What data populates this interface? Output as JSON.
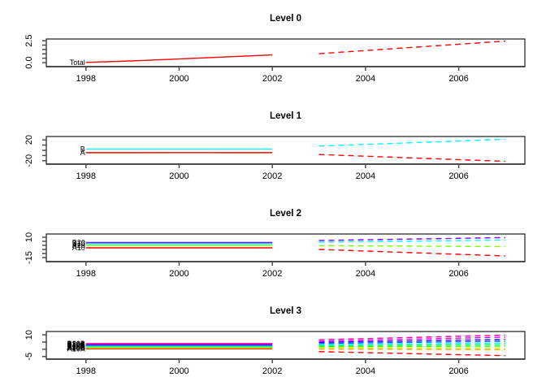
{
  "figure": {
    "background": "#ffffff",
    "text_color": "#000000",
    "box_color": "#1a1a1a",
    "axis_color": "#4d4d4d",
    "description": "Hierarchical time series forecast plot with four stacked panels"
  },
  "chart_data": [
    {
      "type": "line",
      "title": "Level 0",
      "xlim": [
        1997.15,
        2007.42
      ],
      "xticks": [
        {
          "value": 1998,
          "label": "1998"
        },
        {
          "value": 2000,
          "label": "2000"
        },
        {
          "value": 2002,
          "label": "2002"
        },
        {
          "value": 2004,
          "label": "2004"
        },
        {
          "value": 2006,
          "label": "2006"
        }
      ],
      "ylim": [
        -0.46,
        2.7
      ],
      "yticks": [
        0,
        0.5,
        1,
        1.5,
        2,
        2.5
      ],
      "ytick_labels": [
        {
          "value": 0,
          "label": "0.0"
        },
        {
          "value": 2.5,
          "label": "2.5"
        }
      ],
      "grid": false,
      "series": [
        {
          "name": "Total",
          "label": "Total",
          "color": "#FF0000",
          "history": {
            "x": [
              1998,
              1999,
              2000,
              2001,
              2002
            ],
            "y": [
              0.02,
              0.2,
              0.42,
              0.65,
              0.88
            ]
          },
          "forecast": {
            "x": [
              2003,
              2004,
              2005,
              2006,
              2007
            ],
            "y": [
              1.02,
              1.38,
              1.74,
              2.1,
              2.46
            ],
            "style": "dashed"
          }
        }
      ]
    },
    {
      "type": "line",
      "title": "Level 1",
      "xlim": [
        1997.15,
        2007.42
      ],
      "xticks": [
        {
          "value": 1998,
          "label": "1998"
        },
        {
          "value": 2000,
          "label": "2000"
        },
        {
          "value": 2002,
          "label": "2002"
        },
        {
          "value": 2004,
          "label": "2004"
        },
        {
          "value": 2006,
          "label": "2006"
        }
      ],
      "ylim": [
        -26.5,
        26.5
      ],
      "yticks": [
        -20,
        -10,
        0,
        10,
        20
      ],
      "ytick_labels": [
        {
          "value": -20,
          "label": "-20"
        },
        {
          "value": 20,
          "label": "20"
        }
      ],
      "grid": false,
      "series": [
        {
          "name": "A",
          "label": "A",
          "color": "#FF0000",
          "history": {
            "x": [
              1998,
              1999,
              2000,
              2001,
              2002
            ],
            "y": [
              -4.5,
              -4.5,
              -4.4,
              -4.5,
              -4.5
            ]
          },
          "forecast": {
            "x": [
              2003,
              2004,
              2005,
              2006,
              2007
            ],
            "y": [
              -8,
              -11.3,
              -14.6,
              -17.9,
              -21.2
            ],
            "style": "dashed"
          }
        },
        {
          "name": "B",
          "label": "B",
          "color": "#00FFFF",
          "history": {
            "x": [
              1998,
              1999,
              2000,
              2001,
              2002
            ],
            "y": [
              2.2,
              2.2,
              2.3,
              2.2,
              2.2
            ]
          },
          "forecast": {
            "x": [
              2003,
              2004,
              2005,
              2006,
              2007
            ],
            "y": [
              8,
              11.3,
              14.6,
              17.9,
              21.2
            ],
            "style": "dashed"
          }
        }
      ]
    },
    {
      "type": "line",
      "title": "Level 2",
      "xlim": [
        1997.15,
        2007.42
      ],
      "xticks": [
        {
          "value": 1998,
          "label": "1998"
        },
        {
          "value": 2000,
          "label": "2000"
        },
        {
          "value": 2002,
          "label": "2002"
        },
        {
          "value": 2004,
          "label": "2004"
        },
        {
          "value": 2006,
          "label": "2006"
        }
      ],
      "ylim": [
        -20,
        14
      ],
      "yticks": [
        -15,
        -10,
        -5,
        0,
        5,
        10
      ],
      "ytick_labels": [
        {
          "value": -15,
          "label": "-15"
        },
        {
          "value": 10,
          "label": "10"
        }
      ],
      "grid": false,
      "series": [
        {
          "name": "A10",
          "label": "A10",
          "color": "#FF0000",
          "history": {
            "x": [
              1998,
              1999,
              2000,
              2001,
              2002
            ],
            "y": [
              -3,
              -3,
              -3,
              -3,
              -3
            ]
          },
          "forecast": {
            "x": [
              2003,
              2004,
              2005,
              2006,
              2007
            ],
            "y": [
              -5,
              -7,
              -9,
              -11,
              -13
            ],
            "style": "dashed"
          }
        },
        {
          "name": "A20",
          "label": "A20",
          "color": "#80FF00",
          "history": {
            "x": [
              1998,
              1999,
              2000,
              2001,
              2002
            ],
            "y": [
              0,
              0,
              0,
              0,
              0
            ]
          },
          "forecast": {
            "x": [
              2003,
              2004,
              2005,
              2006,
              2007
            ],
            "y": [
              -0.3,
              -0.6,
              -0.9,
              -1.2,
              -1.5
            ],
            "style": "dashed"
          }
        },
        {
          "name": "B10",
          "label": "B10",
          "color": "#00FFFF",
          "history": {
            "x": [
              1998,
              1999,
              2000,
              2001,
              2002
            ],
            "y": [
              2,
              2,
              2,
              2,
              2
            ]
          },
          "forecast": {
            "x": [
              2003,
              2004,
              2005,
              2006,
              2007
            ],
            "y": [
              4,
              4.6,
              5.2,
              5.9,
              6.5
            ],
            "style": "dashed"
          }
        },
        {
          "name": "B20",
          "label": "B20",
          "color": "#8000FF",
          "history": {
            "x": [
              1998,
              1999,
              2000,
              2001,
              2002
            ],
            "y": [
              3.5,
              3.5,
              3.5,
              3.5,
              3.5
            ]
          },
          "forecast": {
            "x": [
              2003,
              2004,
              2005,
              2006,
              2007
            ],
            "y": [
              6,
              6.9,
              7.8,
              8.7,
              9.6
            ],
            "style": "dashed"
          }
        }
      ]
    },
    {
      "type": "line",
      "title": "Level 3",
      "xlim": [
        1997.15,
        2007.42
      ],
      "xticks": [
        {
          "value": 1998,
          "label": "1998"
        },
        {
          "value": 2000,
          "label": "2000"
        },
        {
          "value": 2002,
          "label": "2002"
        },
        {
          "value": 2004,
          "label": "2004"
        },
        {
          "value": 2006,
          "label": "2006"
        }
      ],
      "ylim": [
        -6.8,
        12.3
      ],
      "yticks": [
        -5,
        0,
        5,
        10
      ],
      "ytick_labels": [
        {
          "value": -5,
          "label": "-5"
        },
        {
          "value": 10,
          "label": "10"
        }
      ],
      "grid": false,
      "series": [
        {
          "name": "A10A",
          "label": "A10A",
          "color": "#FF0000",
          "history": {
            "x": [
              1998,
              1999,
              2000,
              2001,
              2002
            ],
            "y": [
              0.3,
              0.3,
              0.3,
              0.3,
              0.3
            ]
          },
          "forecast": {
            "x": [
              2003,
              2004,
              2005,
              2006,
              2007
            ],
            "y": [
              -1.6,
              -2.3,
              -3.0,
              -3.7,
              -4.4
            ],
            "style": "dashed"
          }
        },
        {
          "name": "A10B",
          "label": "A10B",
          "color": "#FF9900",
          "history": {
            "x": [
              1998,
              1999,
              2000,
              2001,
              2002
            ],
            "y": [
              0.8,
              0.8,
              0.8,
              0.8,
              0.8
            ]
          },
          "forecast": {
            "x": [
              2003,
              2004,
              2005,
              2006,
              2007
            ],
            "y": [
              0.2,
              0.1,
              0.0,
              -0.1,
              -0.2
            ],
            "style": "dashed"
          }
        },
        {
          "name": "A10C",
          "label": "A10C",
          "color": "#CCFF00",
          "history": {
            "x": [
              1998,
              1999,
              2000,
              2001,
              2002
            ],
            "y": [
              1.2,
              1.2,
              1.2,
              1.2,
              1.2
            ]
          },
          "forecast": {
            "x": [
              2003,
              2004,
              2005,
              2006,
              2007
            ],
            "y": [
              1.1,
              1.05,
              1.0,
              0.95,
              0.9
            ],
            "style": "dashed"
          }
        },
        {
          "name": "A20A",
          "label": "A20A",
          "color": "#33FF00",
          "history": {
            "x": [
              1998,
              1999,
              2000,
              2001,
              2002
            ],
            "y": [
              1.6,
              1.6,
              1.6,
              1.6,
              1.6
            ]
          },
          "forecast": {
            "x": [
              2003,
              2004,
              2005,
              2006,
              2007
            ],
            "y": [
              1.8,
              1.9,
              2.0,
              2.1,
              2.2
            ],
            "style": "dashed"
          }
        },
        {
          "name": "A20B",
          "label": "A20B",
          "color": "#00FF66",
          "history": {
            "x": [
              1998,
              1999,
              2000,
              2001,
              2002
            ],
            "y": [
              2.0,
              2.0,
              2.0,
              2.0,
              2.0
            ]
          },
          "forecast": {
            "x": [
              2003,
              2004,
              2005,
              2006,
              2007
            ],
            "y": [
              2.5,
              2.7,
              2.9,
              3.1,
              3.3
            ],
            "style": "dashed"
          }
        },
        {
          "name": "B10A",
          "label": "B10A",
          "color": "#00FFFF",
          "history": {
            "x": [
              1998,
              1999,
              2000,
              2001,
              2002
            ],
            "y": [
              2.4,
              2.4,
              2.4,
              2.4,
              2.4
            ]
          },
          "forecast": {
            "x": [
              2003,
              2004,
              2005,
              2006,
              2007
            ],
            "y": [
              3.2,
              3.5,
              3.8,
              4.1,
              4.4
            ],
            "style": "dashed"
          }
        },
        {
          "name": "B10B",
          "label": "B10B",
          "color": "#0066FF",
          "history": {
            "x": [
              1998,
              1999,
              2000,
              2001,
              2002
            ],
            "y": [
              2.8,
              2.8,
              2.8,
              2.8,
              2.8
            ]
          },
          "forecast": {
            "x": [
              2003,
              2004,
              2005,
              2006,
              2007
            ],
            "y": [
              4.0,
              4.4,
              4.8,
              5.2,
              5.6
            ],
            "style": "dashed"
          }
        },
        {
          "name": "B10C",
          "label": "B10C",
          "color": "#3300FF",
          "history": {
            "x": [
              1998,
              1999,
              2000,
              2001,
              2002
            ],
            "y": [
              3.2,
              3.2,
              3.2,
              3.2,
              3.2
            ]
          },
          "forecast": {
            "x": [
              2003,
              2004,
              2005,
              2006,
              2007
            ],
            "y": [
              4.8,
              5.3,
              5.8,
              6.3,
              6.8
            ],
            "style": "dashed"
          }
        },
        {
          "name": "B20A",
          "label": "B20A",
          "color": "#CC00FF",
          "history": {
            "x": [
              1998,
              1999,
              2000,
              2001,
              2002
            ],
            "y": [
              3.6,
              3.6,
              3.6,
              3.6,
              3.6
            ]
          },
          "forecast": {
            "x": [
              2003,
              2004,
              2005,
              2006,
              2007
            ],
            "y": [
              5.6,
              6.3,
              7.0,
              7.7,
              8.4
            ],
            "style": "dashed"
          }
        },
        {
          "name": "B20B",
          "label": "B20B",
          "color": "#FF0099",
          "history": {
            "x": [
              1998,
              1999,
              2000,
              2001,
              2002
            ],
            "y": [
              4.0,
              4.0,
              4.0,
              4.0,
              4.0
            ]
          },
          "forecast": {
            "x": [
              2003,
              2004,
              2005,
              2006,
              2007
            ],
            "y": [
              6.6,
              7.4,
              8.2,
              9.0,
              9.8
            ],
            "style": "dashed"
          }
        }
      ]
    }
  ]
}
